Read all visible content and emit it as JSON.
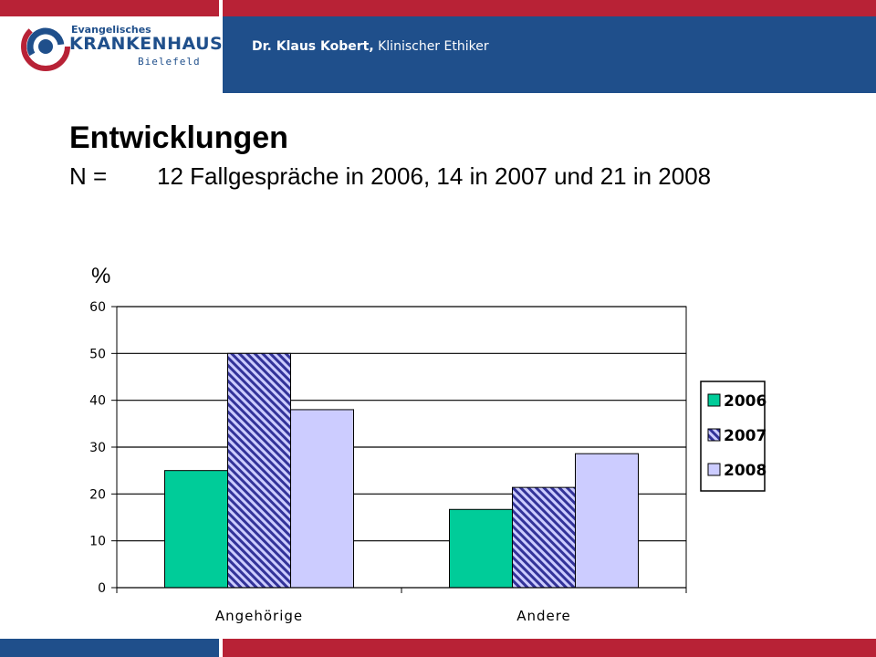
{
  "header": {
    "author_name": "Dr. Klaus Kobert,",
    "author_role": "Klinischer Ethiker",
    "logo_small": "Evangelisches",
    "logo_big": "KRANKENHAUS",
    "logo_city": "Bielefeld"
  },
  "slide": {
    "title": "Entwicklungen",
    "n_label": "N =",
    "n_text": "12 Fallgespräche in 2006, 14 in 2007 und 21 in 2008"
  },
  "colors": {
    "red": "#b82236",
    "blue": "#1f4f8b",
    "series_2006": "#00cc99",
    "series_2007": "#333399",
    "series_2008": "#ccccff"
  },
  "chart_data": {
    "type": "bar",
    "title": "",
    "ylabel": "%",
    "xlabel": "",
    "categories": [
      "Angehörige",
      "Andere"
    ],
    "ylim": [
      0,
      60
    ],
    "yticks": [
      0,
      10,
      20,
      30,
      40,
      50,
      60
    ],
    "grid": true,
    "legend_position": "right",
    "series": [
      {
        "name": "2006",
        "values": [
          25,
          16.7
        ]
      },
      {
        "name": "2007",
        "values": [
          50,
          21.4
        ]
      },
      {
        "name": "2008",
        "values": [
          38,
          28.6
        ]
      }
    ]
  }
}
